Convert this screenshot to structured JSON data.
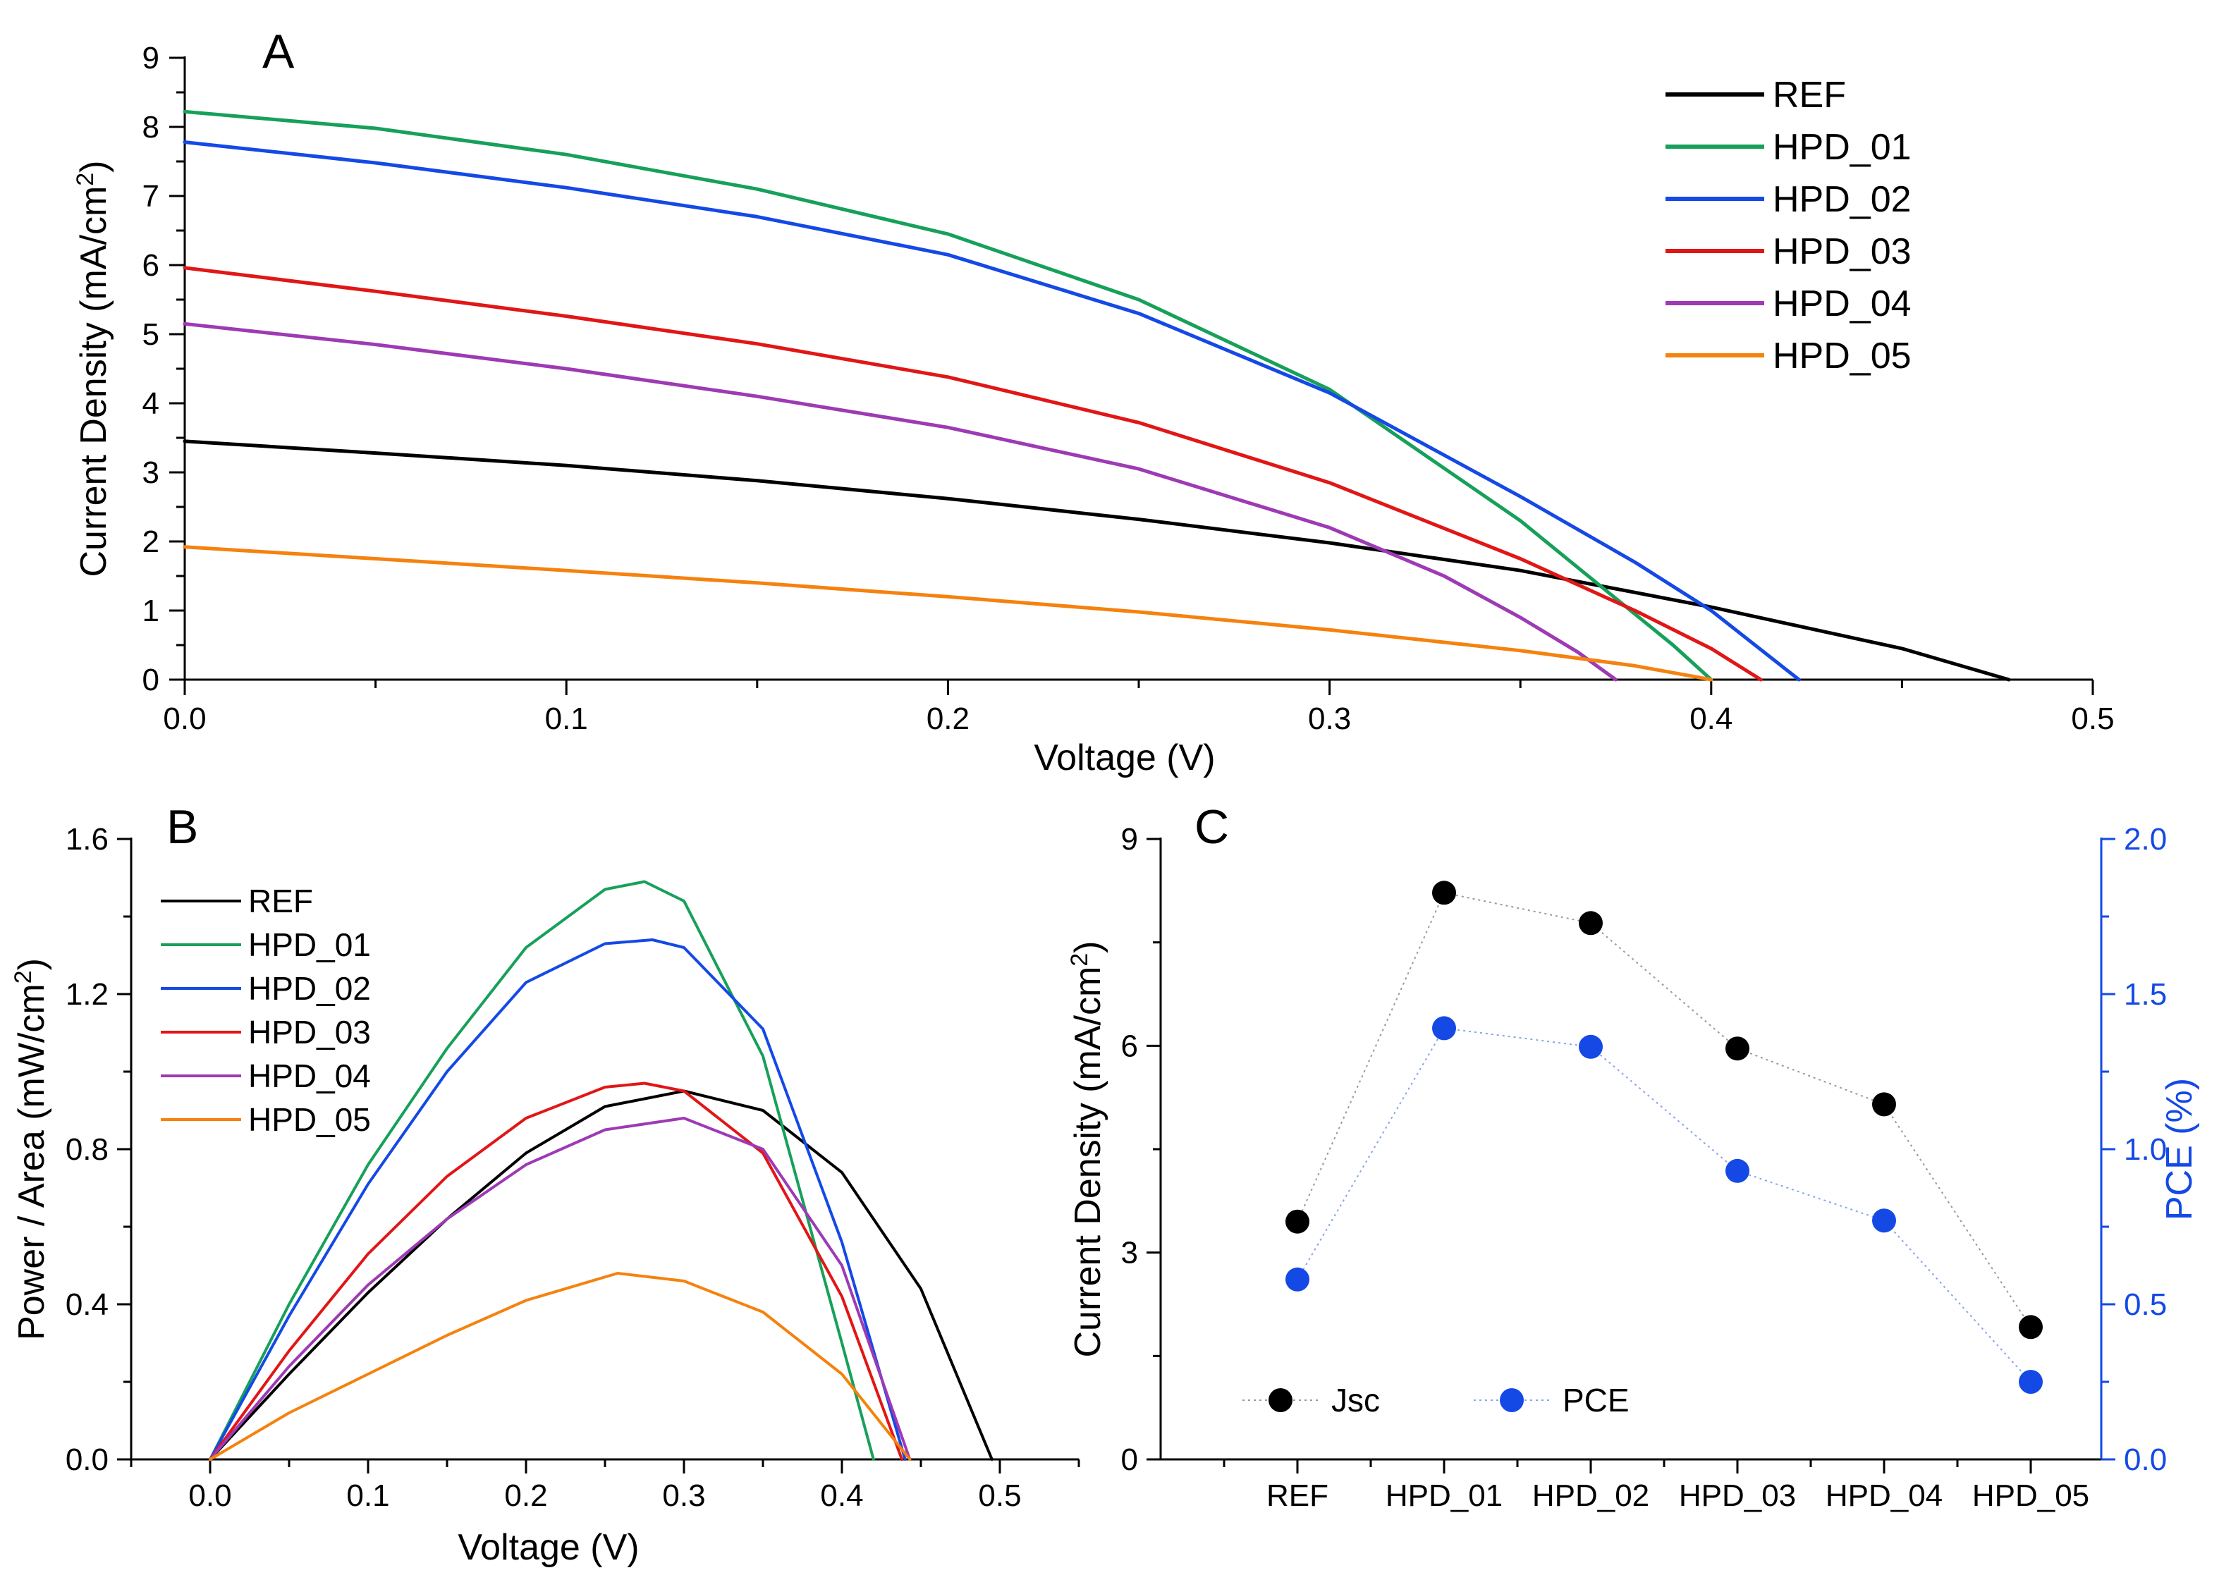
{
  "colors": {
    "REF": "#000000",
    "HPD_01": "#17a05a",
    "HPD_02": "#1449e6",
    "HPD_03": "#e11616",
    "HPD_04": "#9d3ab4",
    "HPD_05": "#f5820e",
    "pce_axis": "#1449e6"
  },
  "chart_data": [
    {
      "panel": "A",
      "type": "line",
      "xlabel": "Voltage (V)",
      "ylabel_main": "Current Density (mA/cm",
      "ylabel_sup": "2",
      "ylabel_end": ")",
      "xlim": [
        0,
        0.5
      ],
      "ylim": [
        0,
        9
      ],
      "xticks": [
        0.0,
        0.1,
        0.2,
        0.3,
        0.4,
        0.5
      ],
      "xtick_labels": [
        "0.0",
        "0.1",
        "0.2",
        "0.3",
        "0.4",
        "0.5"
      ],
      "yticks": [
        0,
        1,
        2,
        3,
        4,
        5,
        6,
        7,
        8,
        9
      ],
      "ytick_labels": [
        "0",
        "1",
        "2",
        "3",
        "4",
        "5",
        "6",
        "7",
        "8",
        "9"
      ],
      "legend_position": "top-right",
      "series": [
        {
          "name": "REF",
          "x": [
            0,
            0.05,
            0.1,
            0.15,
            0.2,
            0.25,
            0.3,
            0.35,
            0.4,
            0.45,
            0.478
          ],
          "y": [
            3.45,
            3.28,
            3.1,
            2.88,
            2.62,
            2.32,
            1.98,
            1.58,
            1.05,
            0.45,
            0
          ]
        },
        {
          "name": "HPD_01",
          "x": [
            0,
            0.05,
            0.1,
            0.15,
            0.2,
            0.25,
            0.3,
            0.35,
            0.37,
            0.39,
            0.4
          ],
          "y": [
            8.22,
            7.98,
            7.6,
            7.1,
            6.45,
            5.5,
            4.2,
            2.3,
            1.4,
            0.5,
            0
          ]
        },
        {
          "name": "HPD_02",
          "x": [
            0,
            0.05,
            0.1,
            0.15,
            0.2,
            0.25,
            0.3,
            0.35,
            0.38,
            0.4,
            0.423
          ],
          "y": [
            7.78,
            7.48,
            7.12,
            6.7,
            6.15,
            5.3,
            4.15,
            2.65,
            1.7,
            1.0,
            0
          ]
        },
        {
          "name": "HPD_03",
          "x": [
            0,
            0.05,
            0.1,
            0.15,
            0.2,
            0.25,
            0.3,
            0.35,
            0.38,
            0.4,
            0.413
          ],
          "y": [
            5.96,
            5.62,
            5.26,
            4.86,
            4.38,
            3.72,
            2.85,
            1.75,
            1.0,
            0.45,
            0
          ]
        },
        {
          "name": "HPD_04",
          "x": [
            0,
            0.05,
            0.1,
            0.15,
            0.2,
            0.25,
            0.3,
            0.33,
            0.35,
            0.365,
            0.375
          ],
          "y": [
            5.15,
            4.85,
            4.5,
            4.1,
            3.65,
            3.05,
            2.2,
            1.5,
            0.9,
            0.4,
            0
          ]
        },
        {
          "name": "HPD_05",
          "x": [
            0,
            0.05,
            0.1,
            0.15,
            0.2,
            0.25,
            0.3,
            0.35,
            0.38,
            0.4
          ],
          "y": [
            1.92,
            1.75,
            1.58,
            1.4,
            1.2,
            0.98,
            0.72,
            0.42,
            0.2,
            0
          ]
        }
      ]
    },
    {
      "panel": "B",
      "type": "line",
      "xlabel": "Voltage (V)",
      "ylabel_main": "Power / Area (mW/cm",
      "ylabel_sup": "2",
      "ylabel_end": ")",
      "xlim": [
        -0.05,
        0.55
      ],
      "ylim": [
        0,
        1.6
      ],
      "xticks": [
        0.0,
        0.1,
        0.2,
        0.3,
        0.4,
        0.5
      ],
      "xtick_labels": [
        "0.0",
        "0.1",
        "0.2",
        "0.3",
        "0.4",
        "0.5"
      ],
      "yticks": [
        0.0,
        0.4,
        0.8,
        1.2,
        1.6
      ],
      "ytick_labels": [
        "0.0",
        "0.4",
        "0.8",
        "1.2",
        "1.6"
      ],
      "legend_position": "top-left",
      "series": [
        {
          "name": "REF",
          "x": [
            0,
            0.05,
            0.1,
            0.15,
            0.2,
            0.25,
            0.3,
            0.35,
            0.4,
            0.45,
            0.495
          ],
          "y": [
            0,
            0.22,
            0.43,
            0.62,
            0.79,
            0.91,
            0.95,
            0.9,
            0.74,
            0.44,
            0
          ]
        },
        {
          "name": "HPD_01",
          "x": [
            0,
            0.05,
            0.1,
            0.15,
            0.2,
            0.25,
            0.275,
            0.3,
            0.35,
            0.4,
            0.42
          ],
          "y": [
            0,
            0.4,
            0.76,
            1.06,
            1.32,
            1.47,
            1.49,
            1.44,
            1.04,
            0.3,
            0
          ]
        },
        {
          "name": "HPD_02",
          "x": [
            0,
            0.05,
            0.1,
            0.15,
            0.2,
            0.25,
            0.28,
            0.3,
            0.35,
            0.4,
            0.44
          ],
          "y": [
            0,
            0.37,
            0.71,
            1.0,
            1.23,
            1.33,
            1.34,
            1.32,
            1.11,
            0.56,
            0
          ]
        },
        {
          "name": "HPD_03",
          "x": [
            0,
            0.05,
            0.1,
            0.15,
            0.2,
            0.25,
            0.275,
            0.3,
            0.35,
            0.4,
            0.438
          ],
          "y": [
            0,
            0.28,
            0.53,
            0.73,
            0.88,
            0.96,
            0.97,
            0.95,
            0.79,
            0.42,
            0
          ]
        },
        {
          "name": "HPD_04",
          "x": [
            0,
            0.05,
            0.1,
            0.15,
            0.2,
            0.25,
            0.3,
            0.35,
            0.4,
            0.443
          ],
          "y": [
            0,
            0.24,
            0.45,
            0.62,
            0.76,
            0.85,
            0.88,
            0.8,
            0.5,
            0
          ]
        },
        {
          "name": "HPD_05",
          "x": [
            0,
            0.05,
            0.1,
            0.15,
            0.2,
            0.258,
            0.3,
            0.35,
            0.4,
            0.443
          ],
          "y": [
            0,
            0.12,
            0.22,
            0.32,
            0.41,
            0.48,
            0.46,
            0.38,
            0.22,
            0
          ]
        }
      ]
    },
    {
      "panel": "C",
      "type": "scatter",
      "categories": [
        "REF",
        "HPD_01",
        "HPD_02",
        "HPD_03",
        "HPD_04",
        "HPD_05"
      ],
      "ylabel_main": "Current Density (mA/cm",
      "ylabel_sup": "2",
      "ylabel_end": ")",
      "y2label": "PCE (%)",
      "ylim": [
        0,
        9
      ],
      "y2lim": [
        0,
        2.0
      ],
      "yticks": [
        0,
        3,
        6,
        9
      ],
      "ytick_labels": [
        "0",
        "3",
        "6",
        "9"
      ],
      "y2ticks": [
        0.0,
        0.5,
        1.0,
        1.5,
        2.0
      ],
      "y2tick_labels": [
        "0.0",
        "0.5",
        "1.0",
        "1.5",
        "2.0"
      ],
      "legend_position": "bottom-left",
      "series": [
        {
          "name": "Jsc",
          "axis": "left",
          "values": [
            3.45,
            8.22,
            7.78,
            5.96,
            5.15,
            1.92
          ]
        },
        {
          "name": "PCE",
          "axis": "right",
          "values": [
            0.58,
            1.39,
            1.33,
            0.93,
            0.77,
            0.25
          ]
        }
      ]
    }
  ],
  "panels": {
    "A": {
      "letter": "A"
    },
    "B": {
      "letter": "B"
    },
    "C": {
      "letter": "C"
    }
  }
}
